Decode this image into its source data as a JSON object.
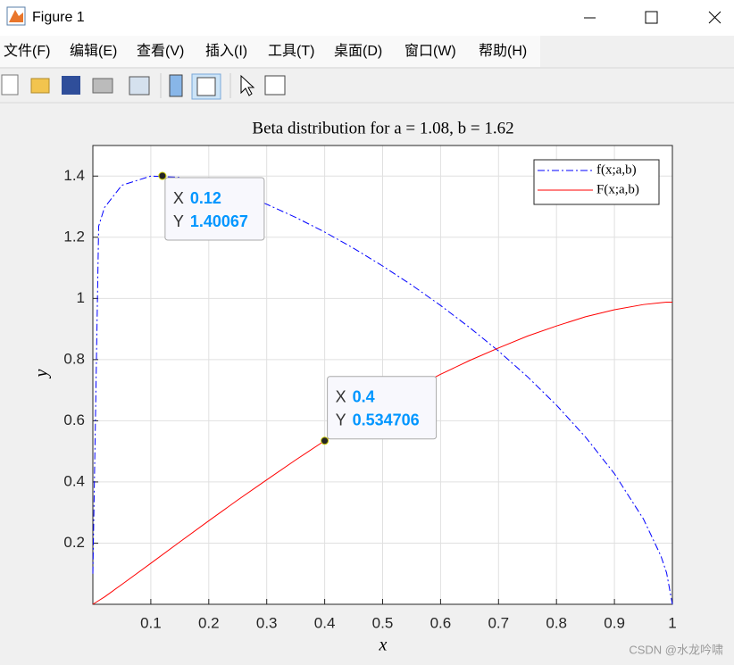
{
  "window": {
    "title": "Figure 1",
    "menu": [
      "文件(F)",
      "编辑(E)",
      "查看(V)",
      "插入(I)",
      "工具(T)",
      "桌面(D)",
      "窗口(W)",
      "帮助(H)"
    ]
  },
  "watermark": "CSDN @水龙吟啸",
  "chart_data": {
    "type": "line",
    "title": "Beta distribution for a = 1.08, b = 1.62",
    "x_label": "x",
    "y_label": "y",
    "x": [
      0,
      0.01,
      0.02,
      0.05,
      0.1,
      0.15,
      0.2,
      0.25,
      0.3,
      0.35,
      0.4,
      0.45,
      0.5,
      0.55,
      0.6,
      0.65,
      0.7,
      0.75,
      0.8,
      0.85,
      0.9,
      0.95,
      0.98,
      0.99,
      1
    ],
    "series": [
      {
        "name": "f(x;a,b)",
        "color": "#0000ff",
        "linestyle": "dashdot",
        "values": [
          0.1,
          1.236,
          1.297,
          1.37,
          1.4,
          1.396,
          1.376,
          1.345,
          1.308,
          1.265,
          1.217,
          1.164,
          1.106,
          1.044,
          0.977,
          0.905,
          0.828,
          0.744,
          0.651,
          0.547,
          0.427,
          0.279,
          0.159,
          0.103,
          0
        ]
      },
      {
        "name": "F(x;a,b)",
        "color": "#ff0000",
        "linestyle": "solid",
        "values": [
          0,
          0.012,
          0.024,
          0.065,
          0.134,
          0.204,
          0.273,
          0.341,
          0.407,
          0.472,
          0.534706,
          0.594,
          0.65,
          0.703,
          0.752,
          0.797,
          0.838,
          0.877,
          0.91,
          0.94,
          0.963,
          0.98,
          0.986,
          0.988,
          0.988
        ]
      }
    ],
    "xlim": [
      0,
      1
    ],
    "ylim": [
      0,
      1.5
    ],
    "xticks": [
      0.1,
      0.2,
      0.3,
      0.4,
      0.5,
      0.6,
      0.7,
      0.8,
      0.9,
      1
    ],
    "yticks": [
      0.2,
      0.4,
      0.6,
      0.8,
      1,
      1.2,
      1.4
    ],
    "grid": true,
    "legend": "upper right",
    "datatips": [
      {
        "x_label": "X",
        "x": 0.12,
        "y_label": "Y",
        "y": 1.40067
      },
      {
        "x_label": "X",
        "x": 0.4,
        "y_label": "Y",
        "y": 0.534706
      }
    ]
  }
}
